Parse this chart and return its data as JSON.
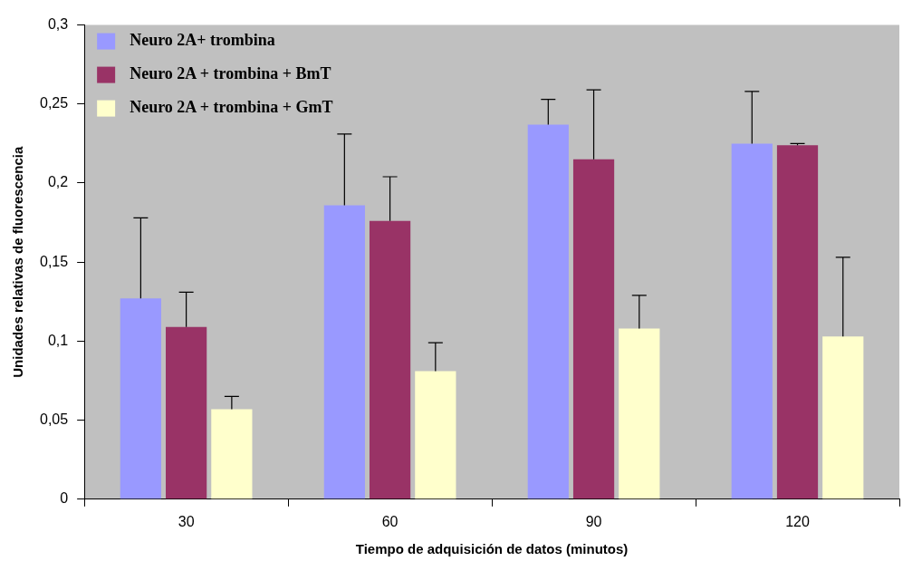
{
  "chart_data": {
    "type": "bar",
    "xlabel": "Tiempo de adquisición de datos (minutos)",
    "ylabel": "Unidades relativas de fluorescencia",
    "categories": [
      "30",
      "60",
      "90",
      "120"
    ],
    "series": [
      {
        "name": "Neuro 2A+ trombina",
        "color": "#9999ff",
        "values": [
          0.127,
          0.186,
          0.237,
          0.225
        ],
        "errors": [
          [
            0.127,
            0.178
          ],
          [
            0.186,
            0.231
          ],
          [
            0.237,
            0.253
          ],
          [
            0.225,
            0.258
          ]
        ]
      },
      {
        "name": "Neuro 2A + trombina + BmT",
        "color": "#993366",
        "values": [
          0.109,
          0.176,
          0.215,
          0.224
        ],
        "errors": [
          [
            0.109,
            0.131
          ],
          [
            0.176,
            0.204
          ],
          [
            0.215,
            0.259
          ],
          [
            0.224,
            0.225
          ]
        ]
      },
      {
        "name": "Neuro 2A + trombina + GmT",
        "color": "#ffffcc",
        "values": [
          0.057,
          0.081,
          0.108,
          0.103
        ],
        "errors": [
          [
            0.057,
            0.065
          ],
          [
            0.081,
            0.099
          ],
          [
            0.108,
            0.129
          ],
          [
            0.103,
            0.153
          ]
        ]
      }
    ],
    "ylim": [
      0,
      0.3
    ],
    "yticks": [
      0,
      {
        "value": 0.05,
        "label": "0,05"
      },
      {
        "value": 0.1,
        "label": "0,1"
      },
      {
        "value": 0.15,
        "label": "0,15"
      },
      {
        "value": 0.2,
        "label": "0,2"
      },
      {
        "value": 0.25,
        "label": "0,25"
      },
      {
        "value": 0.3,
        "label": "0,3"
      }
    ],
    "grid": false,
    "legend": "top left"
  }
}
